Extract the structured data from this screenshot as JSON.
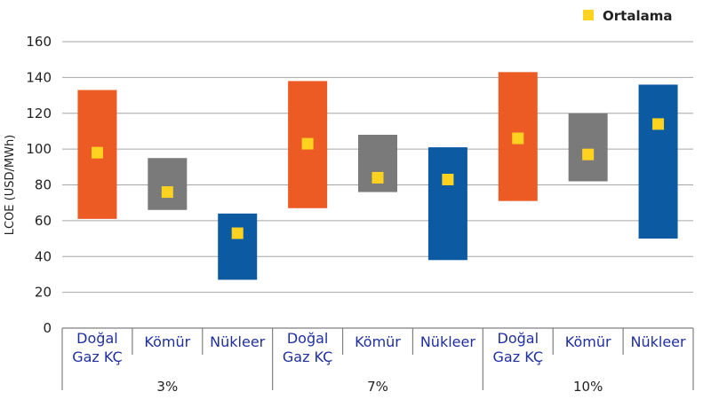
{
  "chart_data": {
    "type": "floating-bar",
    "ylabel": "LCOE (USD/MWh)",
    "ylim": [
      0,
      160
    ],
    "yticks": [
      0,
      20,
      40,
      60,
      80,
      100,
      120,
      140,
      160
    ],
    "grid": true,
    "legend": {
      "placement": "top-right",
      "label": "Ortalama",
      "marker_color": "#ffd21f"
    },
    "groups": [
      {
        "label": "3%",
        "bars": [
          {
            "category": "Doğal Gaz KÇ",
            "lines": [
              "Doğal",
              "Gaz KÇ"
            ],
            "low": 61,
            "high": 133,
            "mean": 98,
            "color": "#ec5b24"
          },
          {
            "category": "Kömür",
            "lines": [
              "Kömür"
            ],
            "low": 66,
            "high": 95,
            "mean": 76,
            "color": "#7a7a7a"
          },
          {
            "category": "Nükleer",
            "lines": [
              "Nükleer"
            ],
            "low": 27,
            "high": 64,
            "mean": 53,
            "color": "#0b5aa2"
          }
        ]
      },
      {
        "label": "7%",
        "bars": [
          {
            "category": "Doğal Gaz KÇ",
            "lines": [
              "Doğal",
              "Gaz KÇ"
            ],
            "low": 67,
            "high": 138,
            "mean": 103,
            "color": "#ec5b24"
          },
          {
            "category": "Kömür",
            "lines": [
              "Kömür"
            ],
            "low": 76,
            "high": 108,
            "mean": 84,
            "color": "#7a7a7a"
          },
          {
            "category": "Nükleer",
            "lines": [
              "Nükleer"
            ],
            "low": 38,
            "high": 101,
            "mean": 83,
            "color": "#0b5aa2"
          }
        ]
      },
      {
        "label": "10%",
        "bars": [
          {
            "category": "Doğal Gaz KÇ",
            "lines": [
              "Doğal",
              "Gaz KÇ"
            ],
            "low": 71,
            "high": 143,
            "mean": 106,
            "color": "#ec5b24"
          },
          {
            "category": "Kömür",
            "lines": [
              "Kömür"
            ],
            "low": 82,
            "high": 120,
            "mean": 97,
            "color": "#7a7a7a"
          },
          {
            "category": "Nükleer",
            "lines": [
              "Nükleer"
            ],
            "low": 50,
            "high": 136,
            "mean": 114,
            "color": "#0b5aa2"
          }
        ]
      }
    ]
  }
}
